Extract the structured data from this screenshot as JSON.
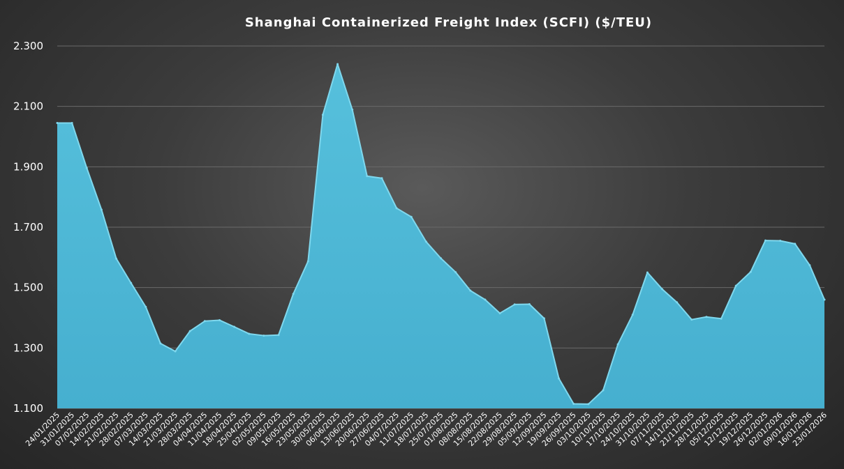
{
  "chart_data": {
    "type": "area",
    "title": "Shanghai Containerized Freight Index (SCFI) ($/TEU)",
    "xlabel": "",
    "ylabel": "",
    "ylim": [
      1100,
      2400
    ],
    "yticks": [
      1100,
      1300,
      1500,
      1700,
      1900,
      2100,
      2300
    ],
    "ytick_labels": [
      "1.100",
      "1.300",
      "1.500",
      "1.700",
      "1.900",
      "2.100",
      "2.300"
    ],
    "grid": true,
    "legend": "none",
    "fill_color": "#4fb8d6",
    "line_color": "#7fd8ee",
    "x": [
      "24/01/2025",
      "31/01/2025",
      "07/02/2025",
      "14/02/2025",
      "21/02/2025",
      "28/02/2025",
      "07/03/2025",
      "14/03/2025",
      "21/03/2025",
      "28/03/2025",
      "04/04/2025",
      "11/04/2025",
      "18/04/2025",
      "25/04/2025",
      "02/05/2025",
      "09/05/2025",
      "16/05/2025",
      "23/05/2025",
      "30/05/2025",
      "06/06/2025",
      "13/06/2025",
      "20/06/2025",
      "27/06/2025",
      "04/07/2025",
      "11/07/2025",
      "18/07/2025",
      "25/07/2025",
      "01/08/2025",
      "08/08/2025",
      "15/08/2025",
      "22/08/2025",
      "29/08/2025",
      "05/09/2025",
      "12/09/2025",
      "19/09/2025",
      "26/09/2025",
      "03/10/2025",
      "10/10/2025",
      "17/10/2025",
      "24/10/2025",
      "31/10/2025",
      "07/11/2025",
      "14/11/2025",
      "21/11/2025",
      "28/11/2025",
      "05/12/2025",
      "12/12/2025",
      "19/12/2025",
      "26/12/2025",
      "02/01/2026",
      "09/01/2026",
      "16/01/2026",
      "23/01/2026"
    ],
    "series": [
      {
        "name": "",
        "values": [
          2045,
          2045,
          1896,
          1758,
          1596,
          1515,
          1436,
          1315,
          1289,
          1356,
          1389,
          1392,
          1370,
          1347,
          1341,
          1343,
          1479,
          1587,
          2072,
          2240,
          2089,
          1869,
          1862,
          1763,
          1734,
          1652,
          1597,
          1551,
          1490,
          1460,
          1415,
          1444,
          1445,
          1398,
          1199,
          1115,
          1114,
          1160,
          1312,
          1410,
          1550,
          1495,
          1451,
          1394,
          1403,
          1397,
          1506,
          1552,
          1656,
          1655,
          1645,
          1574,
          1460
        ]
      }
    ]
  }
}
